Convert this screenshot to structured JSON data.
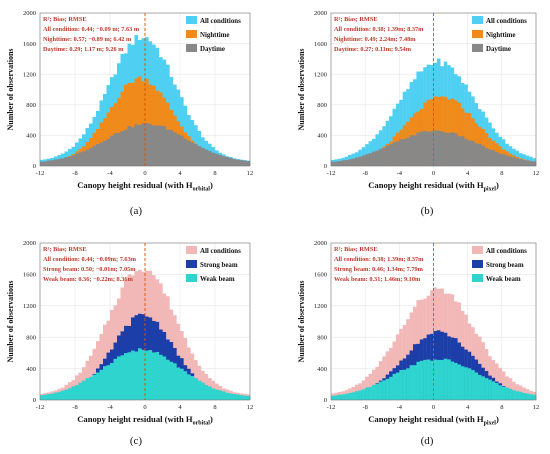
{
  "colors": {
    "all_conditions_top": "#4fd0f2",
    "nighttime": "#f08a1a",
    "daytime": "#888888",
    "all_conditions_bottom": "#f2b8b8",
    "strong_beam": "#1c3ea8",
    "weak_beam": "#2fd4cf",
    "stats_text": "#c0392b",
    "zero_line": "#d35400"
  },
  "chart_data": [
    {
      "type": "histogram",
      "panel_label": "(a)",
      "ylabel": "Number of observations",
      "xlabel": {
        "main": "Canopy height residual (with H",
        "sub": "orbital",
        "close": ")"
      },
      "x_ticks": [
        "-12",
        "-8",
        "-4",
        "0",
        "4",
        "8",
        "12"
      ],
      "y_ticks": [
        "0",
        "400",
        "800",
        "1200",
        "1600",
        "2000"
      ],
      "xlim": [
        -12,
        12
      ],
      "ylim": [
        0,
        2000
      ],
      "bin_width": 0.4,
      "annotation": [
        "R²; Bias; RMSE",
        "All condition: 0.44; −0.09 m; 7.63 m",
        "Nighttime: 0.57; −0.89 m; 6.42 m",
        "Daytime: 0.29; 1.17 m; 9.26 m"
      ],
      "series": [
        {
          "name": "All conditions",
          "color": "#4fd0f2",
          "peak_x": -0.3,
          "peak": 1690,
          "sigma": 3.8,
          "tail_amp": 0.055,
          "tail_sigma": 14
        },
        {
          "name": "Nighttime",
          "color": "#f08a1a",
          "peak_x": -0.5,
          "peak": 1150,
          "sigma": 3.6,
          "tail_amp": 0.05,
          "tail_sigma": 12
        },
        {
          "name": "Daytime",
          "color": "#888888",
          "peak_x": 0.2,
          "peak": 550,
          "sigma": 4.6,
          "tail_amp": 0.12,
          "tail_sigma": 14
        }
      ]
    },
    {
      "type": "histogram",
      "panel_label": "(b)",
      "ylabel": "Number of observations",
      "xlabel": {
        "main": "Canopy height residual (with H",
        "sub": "pixel",
        "close": ")"
      },
      "x_ticks": [
        "-12",
        "-8",
        "-4",
        "0",
        "4",
        "8",
        "12"
      ],
      "y_ticks": [
        "0",
        "400",
        "800",
        "1200",
        "1600",
        "2000"
      ],
      "xlim": [
        -12,
        12
      ],
      "ylim": [
        0,
        2000
      ],
      "bin_width": 0.4,
      "annotation": [
        "R²; Bias; RMSE",
        "All condition: 0.38; 1.39m; 8.37m",
        "Nighttime: 0.49; 2.24m; 7.48m",
        "Daytime: 0.27; 0.11m; 9.54m"
      ],
      "series": [
        {
          "name": "All conditions",
          "color": "#4fd0f2",
          "peak_x": 0.5,
          "peak": 1360,
          "sigma": 4.4,
          "tail_amp": 0.06,
          "tail_sigma": 14
        },
        {
          "name": "Nighttime",
          "color": "#f08a1a",
          "peak_x": 1.0,
          "peak": 900,
          "sigma": 4.1,
          "tail_amp": 0.05,
          "tail_sigma": 12
        },
        {
          "name": "Daytime",
          "color": "#888888",
          "peak_x": 0.2,
          "peak": 460,
          "sigma": 4.9,
          "tail_amp": 0.12,
          "tail_sigma": 14
        }
      ]
    },
    {
      "type": "histogram",
      "panel_label": "(c)",
      "ylabel": "Number of observations",
      "xlabel": {
        "main": "Canopy height residual (with H",
        "sub": "orbital",
        "close": ")"
      },
      "x_ticks": [
        "-12",
        "-8",
        "-4",
        "0",
        "4",
        "8",
        "12"
      ],
      "y_ticks": [
        "0",
        "400",
        "800",
        "1200",
        "1600",
        "2000"
      ],
      "xlim": [
        -12,
        12
      ],
      "ylim": [
        0,
        2000
      ],
      "bin_width": 0.4,
      "annotation": [
        "R²; Bias; RMSE",
        "All condition: 0.44; −0.09m; 7.63m",
        "Strong beam: 0.50; −0.01m; 7.05m",
        "Weak beam: 0.36; −0.22m; 8.36m"
      ],
      "series": [
        {
          "name": "All conditions",
          "color": "#f2b8b8",
          "peak_x": -0.3,
          "peak": 1690,
          "sigma": 3.8,
          "tail_amp": 0.055,
          "tail_sigma": 14
        },
        {
          "name": "Strong beam",
          "color": "#1c3ea8",
          "peak_x": -0.2,
          "peak": 1080,
          "sigma": 3.5,
          "tail_amp": 0.05,
          "tail_sigma": 12
        },
        {
          "name": "Weak beam",
          "color": "#2fd4cf",
          "peak_x": -0.4,
          "peak": 640,
          "sigma": 4.4,
          "tail_amp": 0.1,
          "tail_sigma": 14
        }
      ]
    },
    {
      "type": "histogram",
      "panel_label": "(d)",
      "ylabel": "Number of observations",
      "xlabel": {
        "main": "Canopy height residual (with H",
        "sub": "pixel",
        "close": ")"
      },
      "x_ticks": [
        "-12",
        "-8",
        "-4",
        "0",
        "4",
        "8",
        "12"
      ],
      "y_ticks": [
        "0",
        "400",
        "800",
        "1200",
        "1600",
        "2000"
      ],
      "xlim": [
        -12,
        12
      ],
      "ylim": [
        0,
        2000
      ],
      "bin_width": 0.4,
      "annotation": [
        "R²; Bias; RMSE",
        "All condition: 0.38; 1.39m; 8.37m",
        "Strong beam: 0.46; 1.34m; 7.79m",
        "Weak beam: 0.31; 1.46m; 9.10m"
      ],
      "series": [
        {
          "name": "All conditions",
          "color": "#f2b8b8",
          "peak_x": 0.5,
          "peak": 1400,
          "sigma": 4.4,
          "tail_amp": 0.06,
          "tail_sigma": 14
        },
        {
          "name": "Strong beam",
          "color": "#1c3ea8",
          "peak_x": 0.6,
          "peak": 860,
          "sigma": 4.1,
          "tail_amp": 0.05,
          "tail_sigma": 12
        },
        {
          "name": "Weak beam",
          "color": "#2fd4cf",
          "peak_x": 0.4,
          "peak": 520,
          "sigma": 4.9,
          "tail_amp": 0.1,
          "tail_sigma": 14
        }
      ]
    }
  ]
}
